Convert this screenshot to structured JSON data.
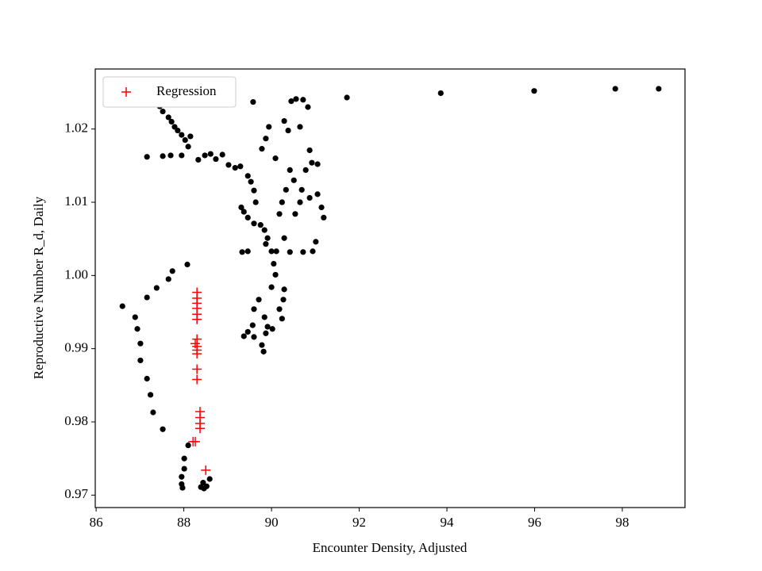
{
  "chart_data": {
    "type": "scatter",
    "xlabel": "Encounter Density, Adjusted",
    "ylabel": "Reproductive Number R_d, Daily",
    "xlim": [
      85.98,
      99.43
    ],
    "ylim": [
      0.9683,
      1.0282
    ],
    "xticks": [
      86,
      88,
      90,
      92,
      94,
      96,
      98
    ],
    "yticks": [
      0.97,
      0.98,
      0.99,
      {
        "value": 1,
        "label": "1.00"
      },
      1.01,
      1.02
    ],
    "legend": "upper left",
    "series": [
      {
        "color": "#000000",
        "marker": "o",
        "x": [
          91.72,
          93.86,
          95.99,
          97.84,
          98.83,
          87.45,
          87.52,
          87.65,
          87.72,
          87.79,
          87.86,
          87.95,
          88.03,
          88.15,
          88.1,
          87.95,
          87.7,
          87.52,
          87.16,
          88.33,
          88.48,
          88.61,
          88.73,
          88.88,
          89.02,
          89.17,
          89.29,
          89.46,
          89.53,
          89.6,
          89.64,
          89.31,
          89.37,
          89.46,
          89.6,
          89.75,
          89.84,
          89.91,
          89.87,
          89.33,
          89.46,
          89.58,
          89.78,
          89.87,
          89.94,
          90.09,
          90.29,
          90.38,
          90.45,
          90.56,
          90.65,
          90.72,
          90.83,
          90.87,
          90.92,
          91.05,
          90.78,
          90.69,
          90.51,
          90.42,
          90.33,
          90.24,
          90.18,
          90.29,
          90.42,
          90.54,
          90.65,
          90.87,
          91.05,
          91.14,
          91.19,
          91.01,
          90.94,
          90.72,
          90.11,
          90.0,
          90.05,
          90.09,
          90.0,
          90.29,
          90.27,
          90.18,
          90.24,
          89.71,
          89.6,
          89.84,
          89.91,
          90.02,
          89.57,
          89.46,
          89.37,
          89.6,
          89.87,
          89.78,
          89.82,
          88.08,
          87.74,
          87.65,
          87.38,
          87.16,
          86.6,
          86.89,
          86.94,
          87.01,
          87.01,
          87.16,
          87.24,
          87.3,
          87.52,
          88.1,
          88.01,
          88.01,
          87.95,
          87.95,
          87.97,
          88.39,
          88.44,
          88.52,
          88.59,
          88.46
        ],
        "values": [
          1.0243,
          1.0249,
          1.0252,
          1.0255,
          1.0255,
          1.0231,
          1.0224,
          1.0216,
          1.021,
          1.0203,
          1.0198,
          1.0192,
          1.0185,
          1.019,
          1.0176,
          1.0164,
          1.0164,
          1.0163,
          1.0162,
          1.0158,
          1.0164,
          1.0166,
          1.0159,
          1.0165,
          1.0151,
          1.0147,
          1.0149,
          1.0136,
          1.0128,
          1.0116,
          1.01,
          1.0093,
          1.0087,
          1.0079,
          1.0071,
          1.0069,
          1.0062,
          1.0051,
          1.0043,
          1.0032,
          1.0033,
          1.0237,
          1.0173,
          1.0187,
          1.0203,
          1.016,
          1.0211,
          1.0198,
          1.0238,
          1.0241,
          1.0203,
          1.024,
          1.023,
          1.0171,
          1.0154,
          1.0152,
          1.0144,
          1.0117,
          1.013,
          1.0144,
          1.0117,
          1.01,
          1.0084,
          1.0051,
          1.0032,
          1.0084,
          1.01,
          1.0106,
          1.0111,
          1.0093,
          1.0079,
          1.0046,
          1.0033,
          1.0032,
          1.0033,
          1.0033,
          1.0016,
          1.0001,
          0.9984,
          0.9981,
          0.9967,
          0.9954,
          0.9941,
          0.9967,
          0.9954,
          0.9943,
          0.993,
          0.9927,
          0.9932,
          0.9923,
          0.9917,
          0.9916,
          0.9921,
          0.9905,
          0.9896,
          1.0015,
          1.0006,
          0.9995,
          0.9983,
          0.997,
          0.9958,
          0.9943,
          0.9927,
          0.9907,
          0.9884,
          0.9859,
          0.9837,
          0.9813,
          0.979,
          0.9768,
          0.975,
          0.9736,
          0.9725,
          0.9715,
          0.971,
          0.9711,
          0.9717,
          0.9712,
          0.9722,
          0.9709
        ]
      },
      {
        "name": "Regression",
        "color": "#ff0000",
        "marker": "+",
        "x": [
          88.3,
          88.3,
          88.3,
          88.3,
          88.3,
          88.3,
          88.3,
          88.26,
          88.3,
          88.3,
          88.3,
          88.3,
          88.3,
          88.37,
          88.37,
          88.37,
          88.37,
          88.26,
          88.21,
          88.5
        ],
        "values": [
          0.9977,
          0.9969,
          0.9962,
          0.9955,
          0.9947,
          0.994,
          0.9913,
          0.9907,
          0.9903,
          0.9898,
          0.9893,
          0.9872,
          0.9858,
          0.9814,
          0.9806,
          0.9798,
          0.9791,
          0.9773,
          0.9773,
          0.9734
        ]
      }
    ]
  }
}
